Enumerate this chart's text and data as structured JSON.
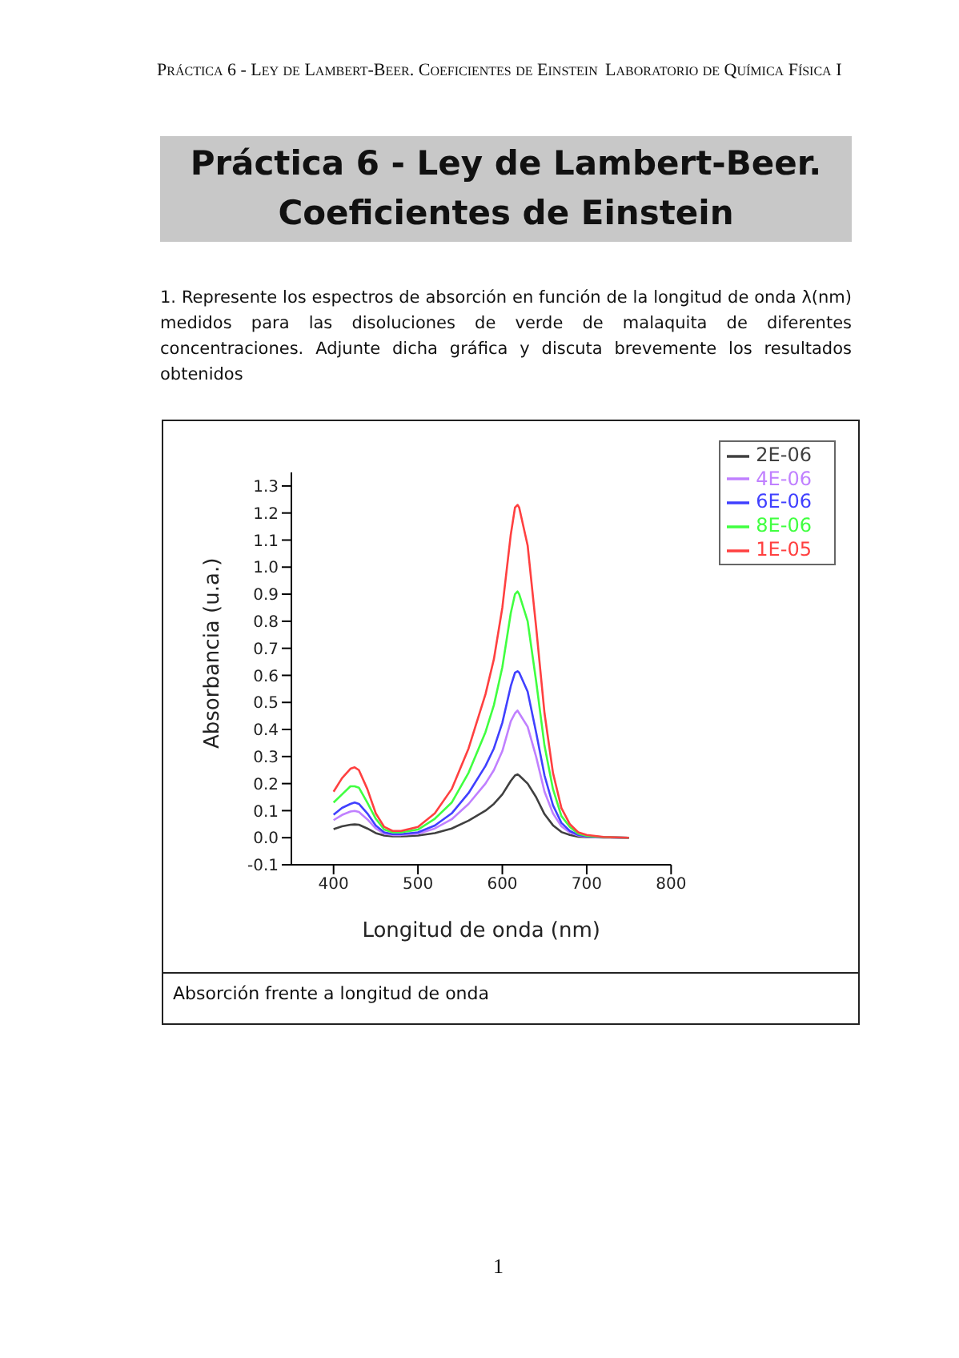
{
  "chart_data": {
    "type": "line",
    "title": "Práctica 6 - Ley de Lambert-Beer. Coeficientes de Einstein",
    "subtitle": "1. Represente los espectros de absorción en función de la longitud de onda λ(nm) medidos para las disoluciones de verde de malaquita de diferentes concentraciones. Adjunte dicha gráfica y discuta brevemente los resultados obtenidos",
    "annotations": [
      "Práctica 6 - Ley de Lambert-Beer. Coeficientes de Einstein",
      "Laboratorio de Química Física I",
      "Absorción frente a longitud de onda",
      "1"
    ],
    "xlabel": "Longitud de onda (nm)",
    "ylabel": "Absorbancia (u.a.)",
    "x": [
      400,
      410,
      420,
      425,
      430,
      440,
      450,
      460,
      470,
      480,
      500,
      520,
      540,
      560,
      580,
      590,
      600,
      610,
      615,
      618,
      620,
      630,
      640,
      650,
      660,
      670,
      680,
      690,
      700,
      720,
      750
    ],
    "series": [
      {
        "name": "2E-06",
        "color": "#404040",
        "values": [
          0.032,
          0.042,
          0.048,
          0.049,
          0.048,
          0.034,
          0.017,
          0.008,
          0.005,
          0.005,
          0.008,
          0.017,
          0.034,
          0.063,
          0.1,
          0.125,
          0.16,
          0.21,
          0.23,
          0.234,
          0.23,
          0.2,
          0.15,
          0.087,
          0.046,
          0.021,
          0.01,
          0.004,
          0.002,
          0.001,
          0
        ]
      },
      {
        "name": "4E-06",
        "color": "#c080ff",
        "values": [
          0.065,
          0.084,
          0.097,
          0.099,
          0.095,
          0.068,
          0.034,
          0.015,
          0.01,
          0.01,
          0.015,
          0.034,
          0.068,
          0.125,
          0.2,
          0.25,
          0.32,
          0.43,
          0.46,
          0.47,
          0.46,
          0.41,
          0.3,
          0.17,
          0.09,
          0.042,
          0.019,
          0.008,
          0.004,
          0.001,
          0
        ]
      },
      {
        "name": "6E-06",
        "color": "#4040ff",
        "values": [
          0.085,
          0.11,
          0.125,
          0.13,
          0.125,
          0.09,
          0.045,
          0.02,
          0.013,
          0.013,
          0.02,
          0.045,
          0.09,
          0.165,
          0.265,
          0.33,
          0.425,
          0.56,
          0.61,
          0.615,
          0.61,
          0.54,
          0.39,
          0.23,
          0.12,
          0.055,
          0.025,
          0.01,
          0.005,
          0.002,
          0
        ]
      },
      {
        "name": "8E-06",
        "color": "#40ff40",
        "values": [
          0.13,
          0.16,
          0.19,
          0.19,
          0.185,
          0.13,
          0.07,
          0.03,
          0.02,
          0.02,
          0.03,
          0.07,
          0.13,
          0.24,
          0.39,
          0.49,
          0.63,
          0.83,
          0.9,
          0.91,
          0.9,
          0.8,
          0.58,
          0.34,
          0.18,
          0.08,
          0.04,
          0.015,
          0.007,
          0.002,
          0
        ]
      },
      {
        "name": "1E-05",
        "color": "#ff4040",
        "values": [
          0.17,
          0.22,
          0.255,
          0.26,
          0.25,
          0.18,
          0.09,
          0.04,
          0.025,
          0.025,
          0.04,
          0.09,
          0.18,
          0.33,
          0.53,
          0.66,
          0.85,
          1.12,
          1.22,
          1.23,
          1.22,
          1.08,
          0.78,
          0.46,
          0.24,
          0.11,
          0.05,
          0.02,
          0.01,
          0.003,
          0
        ]
      }
    ],
    "xlim": [
      350,
      800
    ],
    "xticks": [
      400,
      500,
      600,
      700,
      800
    ],
    "ylim": [
      -0.1,
      1.35
    ],
    "yticks": [
      -0.1,
      {
        "value": 0,
        "label": "0.0"
      },
      0.1,
      0.2,
      0.3,
      0.4,
      0.5,
      0.6,
      0.7,
      0.8,
      0.9,
      {
        "value": 1,
        "label": "1.0"
      },
      1.1,
      1.2,
      1.3
    ],
    "legend": "top right",
    "marker": "none",
    "line_style": "solid",
    "grid": false
  }
}
